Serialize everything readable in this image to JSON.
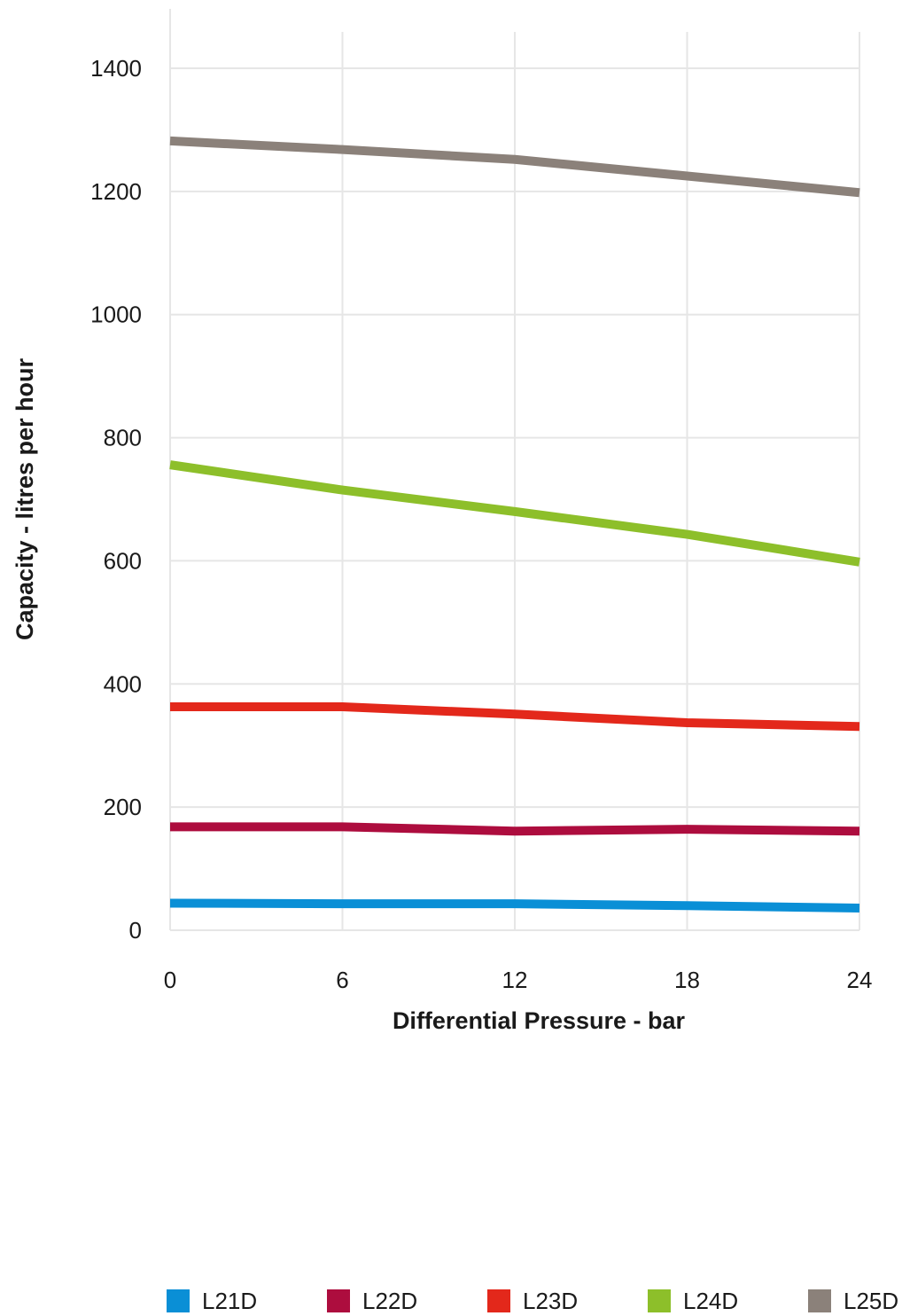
{
  "chart_data": {
    "type": "line",
    "xlabel": "Differential Pressure - bar",
    "ylabel": "Capacity - litres per hour",
    "x": [
      0,
      6,
      12,
      18,
      24
    ],
    "xlim": [
      0,
      24
    ],
    "ylim": [
      0,
      1400
    ],
    "yticks": [
      0,
      200,
      400,
      600,
      800,
      1000,
      1200,
      1400
    ],
    "xticks": [
      0,
      6,
      12,
      18,
      24
    ],
    "grid": true,
    "legend_position": "bottom",
    "series": [
      {
        "name": "L21D",
        "color": "#0a8fd6",
        "values": [
          44,
          43,
          43,
          40,
          36
        ]
      },
      {
        "name": "L22D",
        "color": "#ad0d3e",
        "values": [
          168,
          168,
          161,
          164,
          161
        ]
      },
      {
        "name": "L23D",
        "color": "#e3281b",
        "values": [
          363,
          363,
          351,
          337,
          331
        ]
      },
      {
        "name": "L24D",
        "color": "#8dbf2a",
        "values": [
          756,
          715,
          680,
          643,
          598
        ]
      },
      {
        "name": "L25D",
        "color": "#8b817a",
        "values": [
          1282,
          1268,
          1252,
          1225,
          1198
        ]
      }
    ]
  }
}
